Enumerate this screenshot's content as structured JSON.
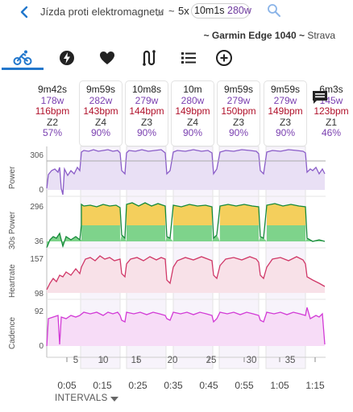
{
  "header": {
    "title": "Jízda proti elektromagnetu",
    "tilde": "~",
    "reps": "5x",
    "duration": "10m1s",
    "power": "280w",
    "subtitle_device": "~ Garmin Edge 1040 ~",
    "subtitle_source": "Strava"
  },
  "tabs": [
    "bike-tab",
    "power-tab",
    "heart-tab",
    "intervals-tab",
    "list-tab",
    "add-tab"
  ],
  "cards": [
    {
      "dur": "9m42s",
      "pw": "178w",
      "hr": "116bpm",
      "zone": "Z2",
      "pct": "57%"
    },
    {
      "dur": "9m59s",
      "pw": "282w",
      "hr": "143bpm",
      "zone": "Z4",
      "pct": "90%"
    },
    {
      "dur": "10m8s",
      "pw": "279w",
      "hr": "144bpm",
      "zone": "Z3",
      "pct": "90%"
    },
    {
      "dur": "10m",
      "pw": "280w",
      "hr": "149bpm",
      "zone": "Z4",
      "pct": "90%"
    },
    {
      "dur": "9m59s",
      "pw": "279w",
      "hr": "150bpm",
      "zone": "Z3",
      "pct": "90%"
    },
    {
      "dur": "9m59s",
      "pw": "279w",
      "hr": "149bpm",
      "zone": "Z3",
      "pct": "90%"
    },
    {
      "dur": "6m3s",
      "pw": "145w",
      "hr": "123bpm",
      "zone": "Z1",
      "pct": "46%"
    }
  ],
  "charts": {
    "power": {
      "label": "Power",
      "max": "306",
      "min": "0"
    },
    "power30": {
      "label": "30s Power",
      "max": "296",
      "min": "36"
    },
    "heartrate": {
      "label": "Heartrate",
      "max": "157",
      "min": "98"
    },
    "cadence": {
      "label": "Cadence",
      "max": "92",
      "min": "0"
    }
  },
  "interval_numbers": [
    "5",
    "10",
    "15",
    "20",
    "25",
    "30",
    "35"
  ],
  "time_axis": [
    "0:05",
    "0:15",
    "0:25",
    "0:35",
    "0:45",
    "0:55",
    "1:05",
    "1:15"
  ],
  "footer": {
    "intervals_label": "INTERVALS"
  },
  "colors": {
    "accent": "#2277cc",
    "power_line": "#8a5cc8",
    "heartrate_line": "#d03868",
    "cadence_line": "#d23ad6"
  }
}
